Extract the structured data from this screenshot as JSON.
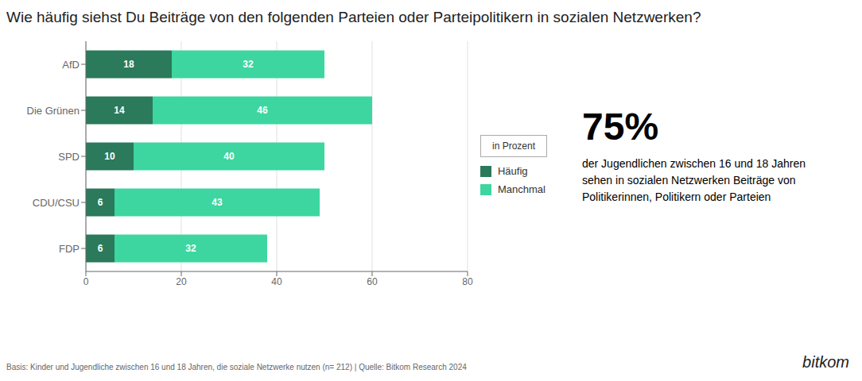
{
  "chart_data": {
    "type": "bar",
    "orientation": "horizontal",
    "stacked": true,
    "title": "Wie häufig siehst Du Beiträge von den folgenden Parteien oder Parteipolitikern in sozialen Netzwerken?",
    "subtitle": "in Prozent",
    "categories": [
      "AfD",
      "Die Grünen",
      "SPD",
      "CDU/CSU",
      "FDP"
    ],
    "series": [
      {
        "name": "Häufig",
        "color": "#2A7A5B",
        "values": [
          18,
          14,
          10,
          6,
          6
        ]
      },
      {
        "name": "Manchmal",
        "color": "#3DD6A0",
        "values": [
          32,
          46,
          40,
          43,
          32
        ]
      }
    ],
    "xlim": [
      0,
      80
    ],
    "xticks": [
      0,
      20,
      40,
      60,
      80
    ],
    "grid": true,
    "legend": "right",
    "data_labels": true,
    "annotations": [
      "75%",
      "der Jugendlichen zwischen 16 und 18 Jahren sehen in sozialen Netzwerken Beiträge von Politikerinnen, Politikern oder Parteien",
      "Basis: Kinder und Jugendliche zwischen 16 und 18 Jahren, die soziale Netzwerke nutzen (n= 212) | Quelle: Bitkom Research 2024",
      "bitkom"
    ]
  }
}
